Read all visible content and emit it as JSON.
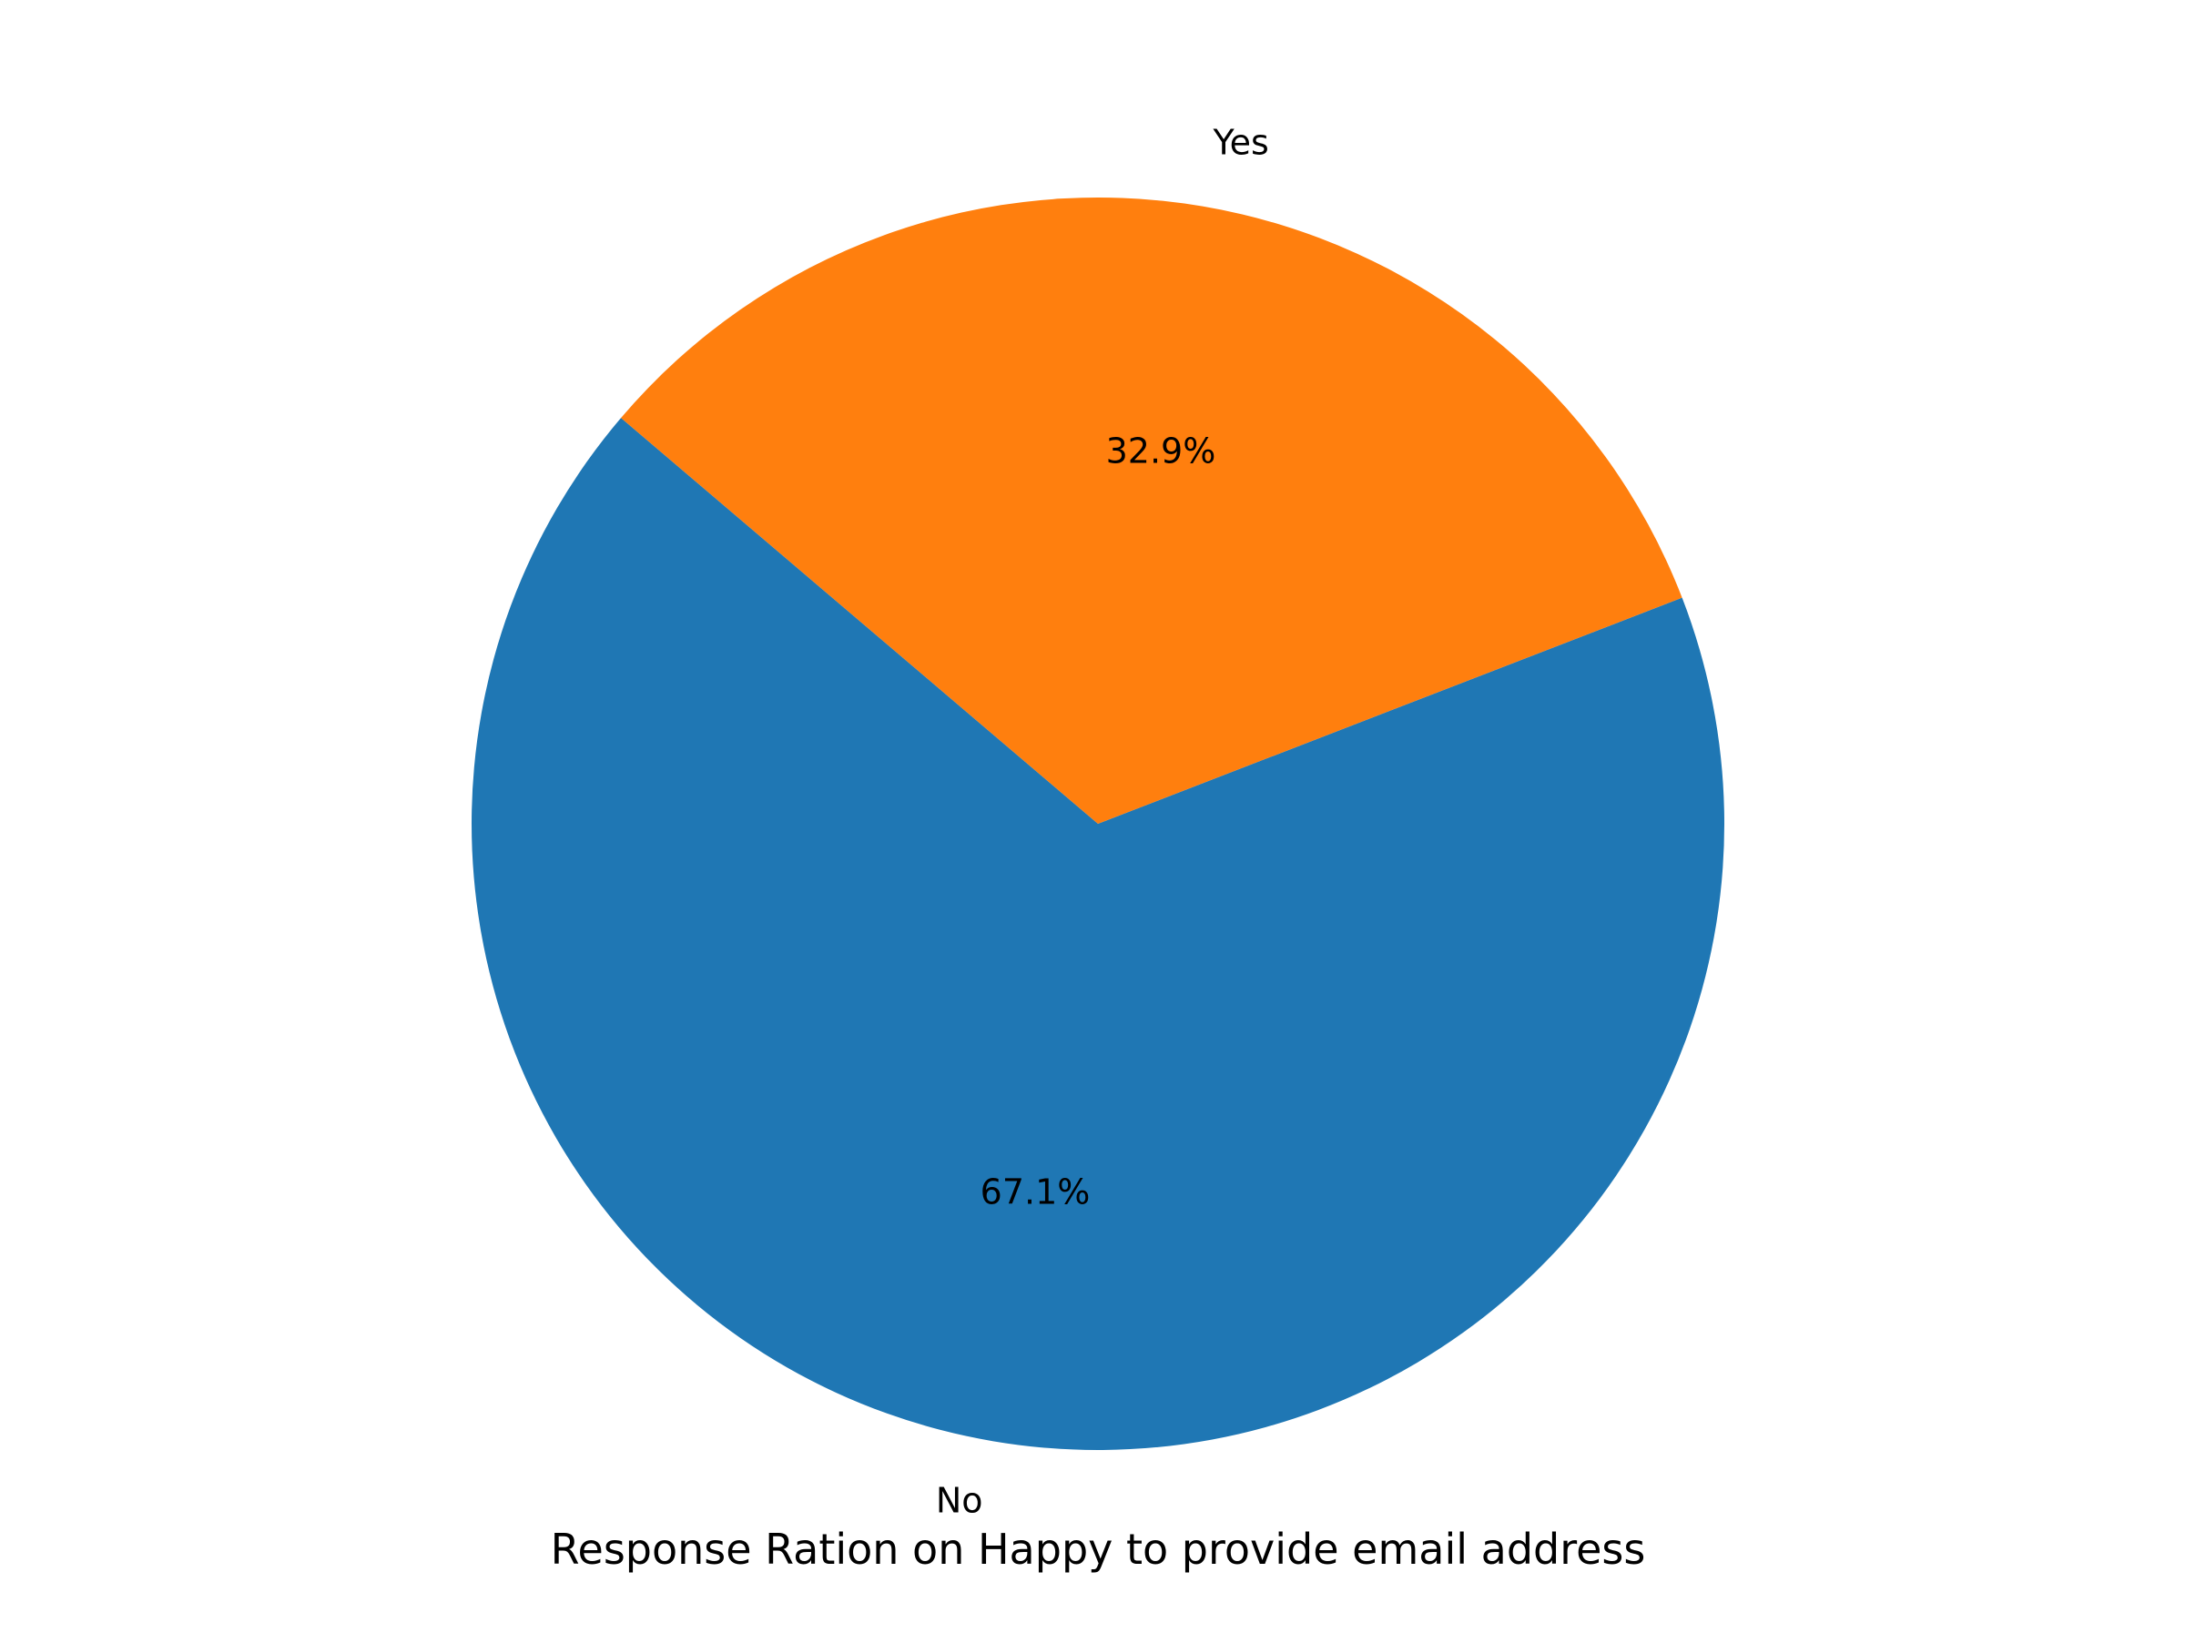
{
  "chart_data": {
    "type": "pie",
    "title": "Response Ration on Happy to provide email address",
    "start_angle_deg": 139.6,
    "direction": "counterclockwise",
    "slices": [
      {
        "label": "No",
        "value": 67.1,
        "pct_label": "67.1%",
        "color": "#1f77b4"
      },
      {
        "label": "Yes",
        "value": 32.9,
        "pct_label": "32.9%",
        "color": "#ff7f0e"
      }
    ]
  }
}
